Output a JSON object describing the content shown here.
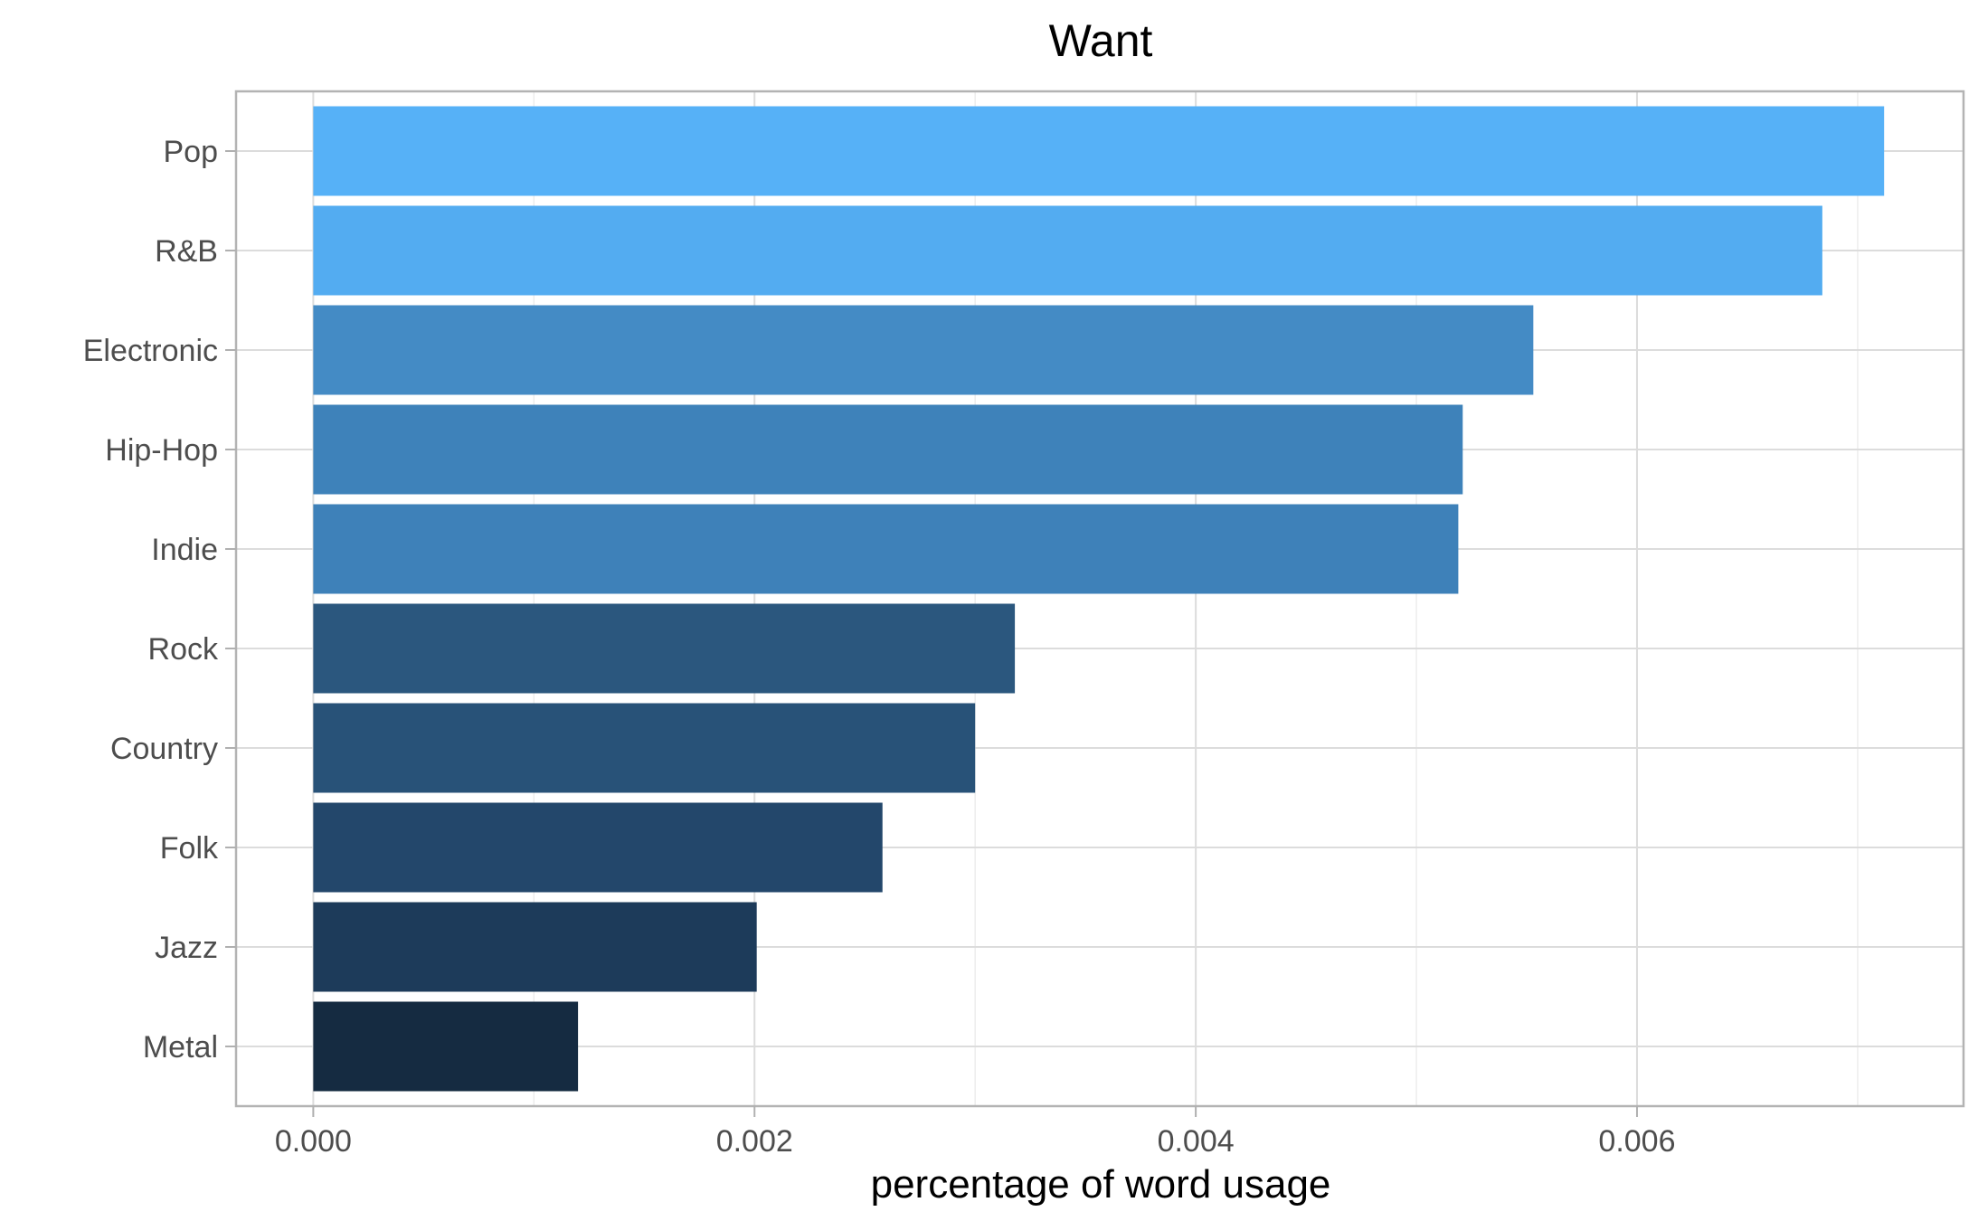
{
  "chart_data": {
    "type": "bar",
    "orientation": "horizontal",
    "title": "Want",
    "xlabel": "percentage of word usage",
    "ylabel": "",
    "categories": [
      "Pop",
      "R&B",
      "Electronic",
      "Hip-Hop",
      "Indie",
      "Rock",
      "Country",
      "Folk",
      "Jazz",
      "Metal"
    ],
    "values": [
      0.00712,
      0.00684,
      0.00553,
      0.00521,
      0.00519,
      0.00318,
      0.003,
      0.00258,
      0.00201,
      0.0012
    ],
    "colors": [
      "#56b1f7",
      "#53acf1",
      "#448bc5",
      "#3e82ba",
      "#3e81b9",
      "#2b577e",
      "#285278",
      "#23476b",
      "#1d3b5a",
      "#152b41"
    ],
    "xlim": [
      -0.00035,
      0.00748
    ],
    "xticks": [
      0.0,
      0.002,
      0.004,
      0.006
    ],
    "xtick_labels": [
      "0.000",
      "0.002",
      "0.004",
      "0.006"
    ],
    "grid": true,
    "legend": "none"
  }
}
